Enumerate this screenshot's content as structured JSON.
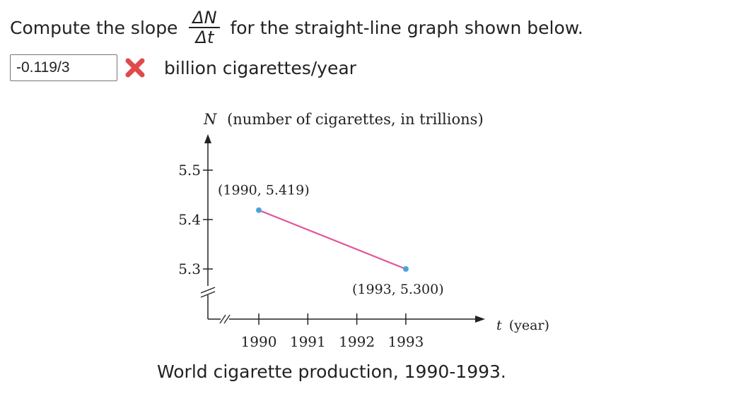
{
  "question": {
    "prefix": "Compute the slope",
    "delta_n": "ΔN",
    "delta_t": "Δt",
    "suffix": "for the straight-line graph shown below."
  },
  "answer": {
    "value": "-0.119/3",
    "status": "incorrect",
    "units": "billion cigarettes/year"
  },
  "colors": {
    "line": "#e0569a",
    "points": "#4aa3df",
    "wrong_mark": "#e04a4a",
    "axes": "#222222"
  },
  "chart_data": {
    "type": "line",
    "ylabel_var": "N",
    "ylabel": "(number of cigarettes, in trillions)",
    "xlabel_var": "t",
    "xlabel": "(year)",
    "x_ticks": [
      1990,
      1991,
      1992,
      1993
    ],
    "x_tick_labels": [
      "1990",
      "1991",
      "1992",
      "1993"
    ],
    "y_ticks": [
      5.3,
      5.4,
      5.5
    ],
    "y_tick_labels": [
      "5.3",
      "5.4",
      "5.5"
    ],
    "axis_breaks": [
      "x",
      "y"
    ],
    "series": [
      {
        "name": "World cigarette production",
        "x": [
          1990,
          1993
        ],
        "y": [
          5.419,
          5.3
        ]
      }
    ],
    "annotations": [
      {
        "text": "(1990, 5.419)",
        "x": 1990,
        "y": 5.419,
        "position": "above-right"
      },
      {
        "text": "(1993, 5.300)",
        "x": 1993,
        "y": 5.3,
        "position": "below-left"
      }
    ],
    "caption": "World cigarette production, 1990-1993."
  }
}
